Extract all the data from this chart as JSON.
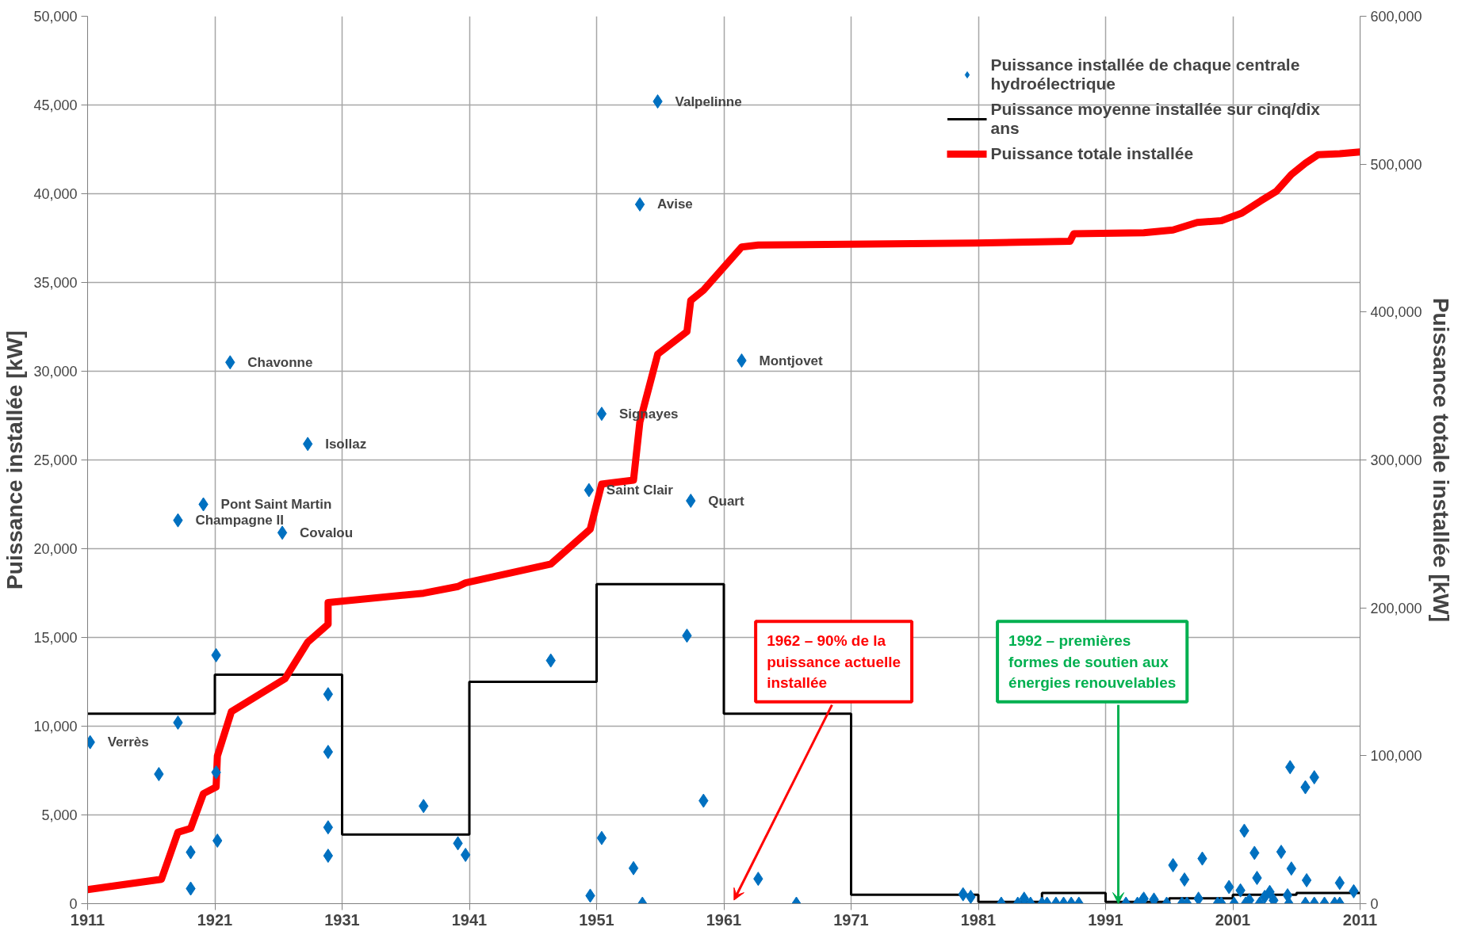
{
  "chart_data": {
    "type": "scatter",
    "ylabel": "Puissance installée [kW]",
    "y2label": "Puissance totale installée [kW]",
    "xlim": [
      1911,
      2011
    ],
    "xticks": [
      1911,
      1921,
      1931,
      1941,
      1951,
      1961,
      1971,
      1981,
      1991,
      2001,
      2011
    ],
    "ylim": [
      0,
      50000
    ],
    "yticks": [
      0,
      {
        "value": 5000,
        "label": "5,000"
      },
      {
        "value": 10000,
        "label": "10,000"
      },
      {
        "value": 15000,
        "label": "15,000"
      },
      {
        "value": 20000,
        "label": "20,000"
      },
      {
        "value": 25000,
        "label": "25,000"
      },
      {
        "value": 30000,
        "label": "30,000"
      },
      {
        "value": 35000,
        "label": "35,000"
      },
      {
        "value": 40000,
        "label": "40,000"
      },
      {
        "value": 45000,
        "label": "45,000"
      },
      {
        "value": 50000,
        "label": "50,000"
      }
    ],
    "y2lim": [
      0,
      600000
    ],
    "y2ticks": [
      0,
      {
        "value": 100000,
        "label": "100,000"
      },
      {
        "value": 200000,
        "label": "200,000"
      },
      {
        "value": 300000,
        "label": "300,000"
      },
      {
        "value": 400000,
        "label": "400,000"
      },
      {
        "value": 500000,
        "label": "500,000"
      },
      {
        "value": 600000,
        "label": "600,000"
      }
    ],
    "grid": true,
    "legend": "top right",
    "series": [
      {
        "name": "Puissance installée de chaque centrale hydroélectrique",
        "marker": "diamond",
        "color": "#0070c0",
        "x": [
          1911.2,
          1916.6,
          1918.1,
          1918.1,
          1919.1,
          1919.1,
          1920.1,
          1921.1,
          1921.1,
          1921.2,
          1922.2,
          1926.3,
          1928.3,
          1929.9,
          1929.9,
          1929.9,
          1929.9,
          1937.4,
          1940.1,
          1940.7,
          1947.4,
          1950.4,
          1950.5,
          1951.4,
          1951.4,
          1953.9,
          1954.4,
          1954.6,
          1955.8,
          1958.1,
          1958.4,
          1959.4,
          1962.4,
          1963.7,
          1966.7,
          1979.8,
          1980.4,
          1982.8,
          1984.1,
          1984.6,
          1985.1,
          1986,
          1986.4,
          1987.1,
          1987.7,
          1988.3,
          1988.9,
          1992.6,
          1993.5,
          1993.9,
          1994,
          1994.8,
          1995.8,
          1996.3,
          1997,
          1997.2,
          1997.4,
          1998.3,
          1998.6,
          1999.8,
          2000.1,
          2000.7,
          2001.1,
          2001.6,
          2001.9,
          2002,
          2002.3,
          2002.7,
          2002.9,
          2003.1,
          2003.5,
          2003.9,
          2004.2,
          2004.8,
          2005.3,
          2005.4,
          2005.5,
          2005.6,
          2006.7,
          2006.8,
          2006.7,
          2007.4,
          2007.4,
          2008.2,
          2009,
          2009.4,
          2009.4,
          2010.5
        ],
        "values": [
          9100,
          7300,
          10200,
          21600,
          2900,
          850,
          22500,
          14000,
          7400,
          3550,
          30500,
          20900,
          25900,
          11800,
          8550,
          4300,
          2700,
          5500,
          3400,
          2750,
          13700,
          23300,
          450,
          27600,
          3700,
          2000,
          39400,
          0,
          45200,
          15100,
          22700,
          5800,
          30600,
          1400,
          0,
          530,
          380,
          0,
          0,
          280,
          0,
          0,
          0,
          0,
          0,
          0,
          0,
          0,
          0,
          190,
          280,
          230,
          0,
          2170,
          0,
          1360,
          0,
          280,
          2540,
          0,
          0,
          940,
          0,
          750,
          4110,
          0,
          190,
          2860,
          1450,
          0,
          380,
          660,
          190,
          2920,
          470,
          0,
          7690,
          1980,
          6560,
          1320,
          0,
          7120,
          0,
          0,
          0,
          1170,
          0,
          700
        ]
      },
      {
        "name": "Puissance moyenne installée sur cinq/dix ans",
        "type": "step",
        "color": "#000000",
        "x": [
          1911,
          1921,
          1931,
          1941,
          1951,
          1961,
          1971,
          1981,
          1986,
          1991,
          1996,
          2001,
          2006,
          2011
        ],
        "values": [
          10700,
          12900,
          3900,
          12500,
          18000,
          10700,
          500,
          100,
          600,
          100,
          300,
          500,
          600,
          600
        ]
      },
      {
        "name": "Puissance totale installée",
        "type": "line",
        "axis": "y2",
        "color": "#ff0000",
        "x": [
          1911,
          1916.8,
          1918.1,
          1919.1,
          1920.1,
          1921.1,
          1921.2,
          1922.3,
          1926.5,
          1928.3,
          1929.9,
          1929.9,
          1937.4,
          1940.1,
          1940.7,
          1947.4,
          1950.5,
          1951.4,
          1953.9,
          1954.4,
          1955.8,
          1958.1,
          1958.4,
          1959.4,
          1962.4,
          1963.7,
          1980.8,
          1988.2,
          1988.5,
          1994,
          1996.3,
          1998.2,
          2000.1,
          2001.7,
          2003.2,
          2004.4,
          2005.6,
          2006.7,
          2007.7,
          2009.4,
          2011
        ],
        "values": [
          9500,
          16500,
          48300,
          50900,
          74400,
          78900,
          99900,
          129800,
          152000,
          176800,
          188900,
          203600,
          209900,
          214400,
          216900,
          229600,
          253200,
          283700,
          286300,
          325700,
          371500,
          386800,
          407800,
          414800,
          444000,
          445300,
          446600,
          447800,
          452900,
          453600,
          455500,
          460600,
          461800,
          466900,
          475200,
          481500,
          493000,
          500600,
          506400,
          507000,
          508300
        ]
      }
    ],
    "annotations": [
      {
        "text": "Verrès",
        "x": 1911.2,
        "y": 9100
      },
      {
        "text": "Champagne II",
        "x": 1918.1,
        "y": 21600
      },
      {
        "text": "Pont Saint Martin",
        "x": 1920.1,
        "y": 22500
      },
      {
        "text": "Chavonne",
        "x": 1922.2,
        "y": 30500
      },
      {
        "text": "Covalou",
        "x": 1926.3,
        "y": 20900
      },
      {
        "text": "Isollaz",
        "x": 1928.3,
        "y": 25900
      },
      {
        "text": "Saint Clair",
        "x": 1950.4,
        "y": 23300
      },
      {
        "text": "Signayes",
        "x": 1951.4,
        "y": 27600
      },
      {
        "text": "Avise",
        "x": 1954.4,
        "y": 39400
      },
      {
        "text": "Valpelinne",
        "x": 1955.8,
        "y": 45200
      },
      {
        "text": "Quart",
        "x": 1958.4,
        "y": 22700
      },
      {
        "text": "Montjovet",
        "x": 1962.4,
        "y": 30600
      },
      "1962 – 90% de la puissance actuelle installée",
      {
        "text": "1992 – premières formes de soutien aux énergies renouvelables",
        "x": 1992,
        "y": 0
      }
    ]
  }
}
